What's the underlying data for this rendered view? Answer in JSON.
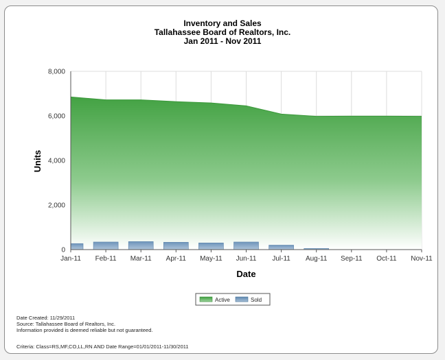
{
  "header": {
    "title": "Inventory and Sales",
    "subtitle": "Tallahassee Board of Realtors, Inc.",
    "date_range": "Jan 2011 - Nov 2011"
  },
  "footer": {
    "created": "Date Created: 11/29/2011",
    "source": "Source: Tallahassee Board of Realtors, Inc.",
    "disclaimer": "Information provided is deemed reliable but not guaranteed.",
    "criteria": "Criteria: Class=RS,MF,CO,LL,RN AND Date Range=01/01/2011-11/30/2011"
  },
  "chart_data": {
    "type": "area",
    "title": "Inventory and Sales",
    "xlabel": "Date",
    "ylabel": "Units",
    "ylim": [
      0,
      8000
    ],
    "yticks": [
      0,
      2000,
      4000,
      6000,
      8000
    ],
    "ytick_labels": [
      "0",
      "2,000",
      "4,000",
      "6,000",
      "8,000"
    ],
    "categories": [
      "Jan-11",
      "Feb-11",
      "Mar-11",
      "Apr-11",
      "May-11",
      "Jun-11",
      "Jul-11",
      "Aug-11",
      "Sep-11",
      "Oct-11",
      "Nov-11"
    ],
    "grid": true,
    "legend_position": "bottom",
    "series": [
      {
        "name": "Active",
        "type": "area",
        "color": "#3e9e3e",
        "values": [
          6850,
          6720,
          6720,
          6640,
          6580,
          6450,
          6080,
          5980,
          5990,
          5990,
          5980
        ]
      },
      {
        "name": "Sold",
        "type": "bar",
        "color": "#5f89b0",
        "values": [
          270,
          340,
          360,
          330,
          300,
          340,
          200,
          50,
          0,
          0,
          0
        ]
      }
    ]
  }
}
